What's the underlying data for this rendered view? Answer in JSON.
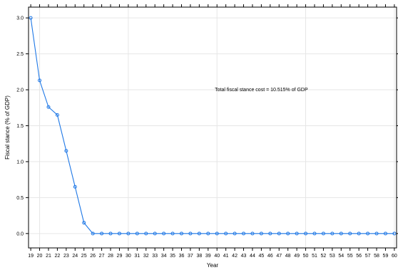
{
  "chart_data": {
    "type": "line",
    "title": "",
    "xlabel": "Year",
    "ylabel": "Fiscal stance (% of GDP)",
    "x": [
      19,
      20,
      21,
      22,
      23,
      24,
      25,
      26,
      27,
      28,
      29,
      30,
      31,
      32,
      33,
      34,
      35,
      36,
      37,
      38,
      39,
      40,
      41,
      42,
      43,
      44,
      45,
      46,
      47,
      48,
      49,
      50,
      51,
      52,
      53,
      54,
      55,
      56,
      57,
      58,
      59,
      60
    ],
    "series": [
      {
        "values": [
          3.0,
          2.13,
          1.76,
          1.65,
          1.15,
          0.65,
          0.15,
          0,
          0,
          0,
          0,
          0,
          0,
          0,
          0,
          0,
          0,
          0,
          0,
          0,
          0,
          0,
          0,
          0,
          0,
          0,
          0,
          0,
          0,
          0,
          0,
          0,
          0,
          0,
          0,
          0,
          0,
          0,
          0,
          0,
          0,
          0
        ],
        "color": "#1f78e6"
      }
    ],
    "xlim": [
      18.75,
      60.25
    ],
    "ylim": [
      -0.2,
      3.15
    ],
    "yticks": [
      "0.0",
      "0.5",
      "1.0",
      "1.5",
      "2.0",
      "2.5",
      "3.0"
    ],
    "grid": true,
    "annotation": {
      "text": "Total fiscal stance cost = 10.515% of GDP",
      "x": 45,
      "y": 1.98
    }
  }
}
